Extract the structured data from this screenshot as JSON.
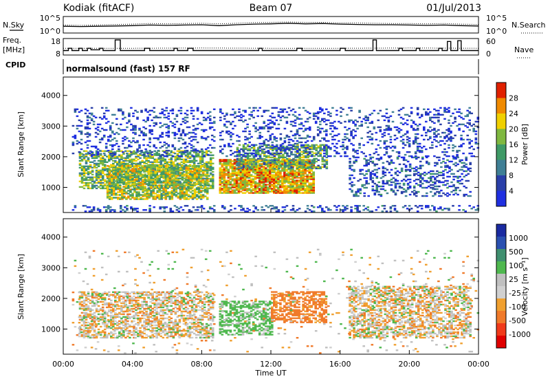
{
  "header": {
    "radar": "Kodiak (fitACF)",
    "beam": "Beam 07",
    "date": "01/Jul/2013"
  },
  "left_labels": {
    "nsky": "N.Sky",
    "freq": "Freq.",
    "freq_unit": "[MHz]",
    "cpid": "CPID"
  },
  "right_labels": {
    "nsearch": "N.Search",
    "nave": "Nave"
  },
  "cpid_text": "normalsound (fast) 157 RF",
  "chart_data": [
    {
      "type": "line",
      "panel": "noise",
      "left_axis": {
        "ticks": [
          "10^5",
          "10^0"
        ],
        "scale": "log",
        "range": [
          1,
          100000
        ]
      },
      "right_axis": {
        "ticks": [
          "10^5",
          "10^0"
        ],
        "scale": "log",
        "range": [
          1,
          100000
        ]
      },
      "series": [
        {
          "name": "N.Sky",
          "style": "solid",
          "x": [
            0,
            1,
            2,
            3,
            4,
            5,
            6,
            7,
            8,
            9,
            10,
            11,
            12,
            13,
            14,
            15,
            16,
            17,
            18,
            19,
            20,
            21,
            22,
            23,
            24
          ],
          "log10_values": [
            2.0,
            1.9,
            2.0,
            2.1,
            2.2,
            2.4,
            2.3,
            2.4,
            2.5,
            2.2,
            2.5,
            2.7,
            2.8,
            3.0,
            2.8,
            2.9,
            2.7,
            2.6,
            2.5,
            2.5,
            2.4,
            2.3,
            2.4,
            2.2,
            2.1
          ]
        },
        {
          "name": "N.Search",
          "style": "dotted",
          "x": [
            0,
            1,
            2,
            3,
            4,
            5,
            6,
            7,
            8,
            9,
            10,
            11,
            12,
            13,
            14,
            15,
            16,
            17,
            18,
            19,
            20,
            21,
            22,
            23,
            24
          ],
          "log10_values": [
            2.4,
            2.3,
            2.4,
            2.6,
            2.7,
            2.9,
            2.8,
            2.9,
            3.0,
            2.8,
            3.0,
            3.2,
            3.3,
            3.4,
            3.3,
            3.3,
            3.1,
            3.1,
            3.0,
            2.9,
            2.9,
            2.8,
            2.9,
            2.7,
            2.6
          ]
        }
      ]
    },
    {
      "type": "line",
      "panel": "frequency",
      "left_axis": {
        "ticks": [
          "18",
          "8"
        ],
        "range": [
          8,
          18
        ],
        "unit": "MHz"
      },
      "right_axis": {
        "ticks": [
          "60",
          "0"
        ],
        "range": [
          0,
          60
        ]
      },
      "series": [
        {
          "name": "Freq.",
          "style": "step",
          "x": [
            0,
            0.3,
            0.5,
            0.9,
            1.1,
            1.4,
            1.6,
            2.1,
            2.3,
            3.0,
            3.3,
            4.7,
            5.0,
            6.4,
            6.6,
            7.2,
            7.5,
            11.3,
            11.5,
            13.5,
            13.8,
            16.0,
            16.3,
            17.9,
            18.1,
            19.4,
            19.6,
            20.4,
            20.6,
            21.7,
            21.9,
            22.2,
            22.4,
            22.8,
            23.0,
            24.0
          ],
          "values": [
            10.5,
            12.0,
            10.5,
            12.0,
            10.5,
            12.0,
            11.0,
            12.0,
            10.5,
            17.5,
            10.5,
            12.0,
            10.5,
            12.0,
            10.5,
            12.0,
            10.5,
            12.0,
            10.5,
            12.0,
            10.5,
            12.0,
            10.5,
            17.5,
            10.5,
            12.0,
            10.5,
            12.0,
            10.5,
            12.0,
            10.5,
            16.5,
            10.5,
            17.0,
            10.5,
            10.5
          ]
        },
        {
          "name": "Nave",
          "style": "dotted",
          "x": [
            0,
            4,
            8,
            12,
            16,
            20,
            24
          ],
          "values": [
            24,
            24,
            25,
            24,
            24,
            25,
            24
          ]
        }
      ]
    },
    {
      "type": "heatmap",
      "panel": "power",
      "xlabel": "",
      "ylabel": "Slant Range [km]",
      "xlim": [
        0,
        24
      ],
      "ylim": [
        180,
        4600
      ],
      "yticks": [
        1000,
        2000,
        3000,
        4000
      ],
      "colorbar": {
        "label": "Power [dB]",
        "ticks": [
          4,
          8,
          12,
          16,
          20,
          24,
          28
        ],
        "range": [
          0,
          32
        ],
        "colors": [
          "#1f2fe0",
          "#2a3fa8",
          "#3f7f95",
          "#3f9a66",
          "#7fb840",
          "#f0d000",
          "#f08a00",
          "#e02000"
        ]
      },
      "regions": [
        {
          "t0": 0.9,
          "t1": 8.7,
          "r0": 950,
          "r1": 2200,
          "intensity": 0.45
        },
        {
          "t0": 2.5,
          "t1": 8.3,
          "r0": 600,
          "r1": 1700,
          "intensity": 0.55
        },
        {
          "t0": 9.0,
          "t1": 14.5,
          "r0": 800,
          "r1": 1900,
          "intensity": 0.7
        },
        {
          "t0": 10.0,
          "t1": 15.2,
          "r0": 1600,
          "r1": 2400,
          "intensity": 0.4
        },
        {
          "t0": 0.5,
          "t1": 24.0,
          "r0": 200,
          "r1": 400,
          "intensity": 0.1
        },
        {
          "t0": 16.5,
          "t1": 23.5,
          "r0": 700,
          "r1": 2000,
          "intensity": 0.12
        },
        {
          "t0": 0.5,
          "t1": 24.0,
          "r0": 2000,
          "r1": 3600,
          "intensity": 0.05
        }
      ]
    },
    {
      "type": "heatmap",
      "panel": "velocity",
      "xlabel": "Time UT",
      "ylabel": "Slant Range [km]",
      "xlim": [
        0,
        24
      ],
      "ylim": [
        180,
        4600
      ],
      "xticks": [
        "00:00",
        "04:00",
        "08:00",
        "12:00",
        "16:00",
        "20:00",
        "00:00"
      ],
      "yticks": [
        1000,
        2000,
        3000,
        4000
      ],
      "colorbar": {
        "label": "Velocity [m s⁻¹]",
        "ticks": [
          1000,
          500,
          100,
          25,
          -25,
          -100,
          -500,
          -1000
        ],
        "range": [
          -1000,
          1000
        ],
        "colors": [
          "#e00000",
          "#f03a1a",
          "#f07a2a",
          "#f0a030",
          "#d0d0d0",
          "#c0c0c0",
          "#4fb84f",
          "#3f8f6f",
          "#2a50b0",
          "#1a2aa0"
        ]
      },
      "regions": [
        {
          "t0": 0.9,
          "t1": 8.7,
          "r0": 700,
          "r1": 2200,
          "velocity": 0
        },
        {
          "t0": 9.0,
          "t1": 12.0,
          "r0": 800,
          "r1": 1900,
          "velocity": 150
        },
        {
          "t0": 12.0,
          "t1": 15.2,
          "r0": 1200,
          "r1": 2200,
          "velocity": -150
        },
        {
          "t0": 16.5,
          "t1": 23.5,
          "r0": 700,
          "r1": 2400,
          "velocity": 0
        },
        {
          "t0": 0.5,
          "t1": 24.0,
          "r0": 200,
          "r1": 3600,
          "velocity": 0
        }
      ]
    }
  ]
}
